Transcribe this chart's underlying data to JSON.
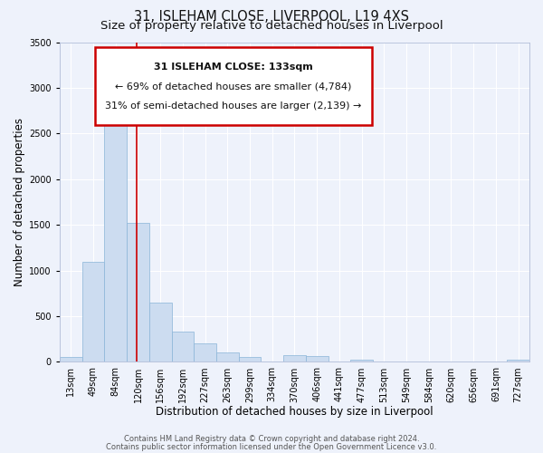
{
  "title_line1": "31, ISLEHAM CLOSE, LIVERPOOL, L19 4XS",
  "title_line2": "Size of property relative to detached houses in Liverpool",
  "xlabel": "Distribution of detached houses by size in Liverpool",
  "ylabel": "Number of detached properties",
  "categories": [
    "13sqm",
    "49sqm",
    "84sqm",
    "120sqm",
    "156sqm",
    "192sqm",
    "227sqm",
    "263sqm",
    "299sqm",
    "334sqm",
    "370sqm",
    "406sqm",
    "441sqm",
    "477sqm",
    "513sqm",
    "549sqm",
    "584sqm",
    "620sqm",
    "656sqm",
    "691sqm",
    "727sqm"
  ],
  "bar_heights": [
    50,
    1100,
    2930,
    1520,
    650,
    330,
    200,
    100,
    50,
    0,
    75,
    60,
    0,
    20,
    0,
    0,
    0,
    0,
    0,
    0,
    20
  ],
  "bar_color": "#ccdcf0",
  "bar_edge_color": "#8ab4d8",
  "bar_width": 1.0,
  "ylim": [
    0,
    3500
  ],
  "yticks": [
    0,
    500,
    1000,
    1500,
    2000,
    2500,
    3000,
    3500
  ],
  "vline_x": 3.43,
  "vline_color": "#cc0000",
  "annotation_text_line1": "31 ISLEHAM CLOSE: 133sqm",
  "annotation_text_line2": "← 69% of detached houses are smaller (4,784)",
  "annotation_text_line3": "31% of semi-detached houses are larger (2,139) →",
  "annotation_box_color": "#cc0000",
  "footer_line1": "Contains HM Land Registry data © Crown copyright and database right 2024.",
  "footer_line2": "Contains public sector information licensed under the Open Government Licence v3.0.",
  "bg_color": "#eef2fb",
  "plot_bg_color": "#eef2fb",
  "grid_color": "#ffffff",
  "title_fontsize": 10.5,
  "subtitle_fontsize": 9.5,
  "axis_label_fontsize": 8.5,
  "tick_fontsize": 7,
  "annotation_fontsize": 8,
  "footer_fontsize": 6
}
